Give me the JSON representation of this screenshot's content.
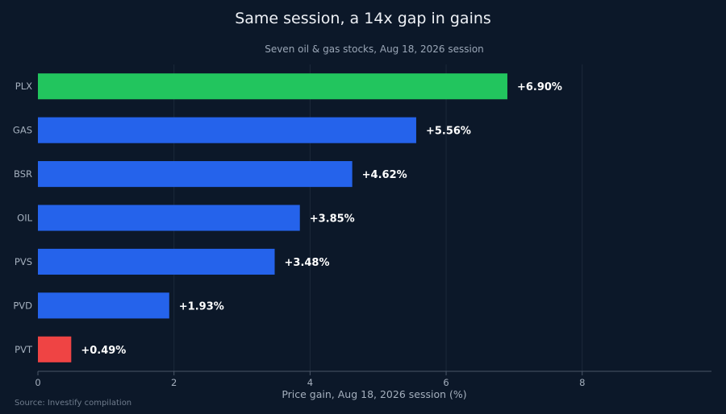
{
  "chart_data": {
    "type": "bar",
    "orientation": "horizontal",
    "title": "Same session, a 14x gap in gains",
    "subtitle": "Seven oil & gas stocks, Aug 18, 2026 session",
    "xlabel": "Price gain, Aug 18, 2026 session (%)",
    "ylabel": "",
    "categories": [
      "PLX",
      "GAS",
      "BSR",
      "OIL",
      "PVS",
      "PVD",
      "PVT"
    ],
    "values": [
      6.9,
      5.56,
      4.62,
      3.85,
      3.48,
      1.93,
      0.49
    ],
    "value_labels": [
      "+6.90%",
      "+5.56%",
      "+4.62%",
      "+3.85%",
      "+3.48%",
      "+1.93%",
      "+0.49%"
    ],
    "bar_colors": [
      "#22c55e",
      "#2563eb",
      "#2563eb",
      "#2563eb",
      "#2563eb",
      "#2563eb",
      "#ef4444"
    ],
    "xlim": [
      0,
      9.9
    ],
    "xticks": [
      0,
      2,
      4,
      6,
      8
    ],
    "grid": "vertical",
    "source": "Source: Investify compilation"
  }
}
